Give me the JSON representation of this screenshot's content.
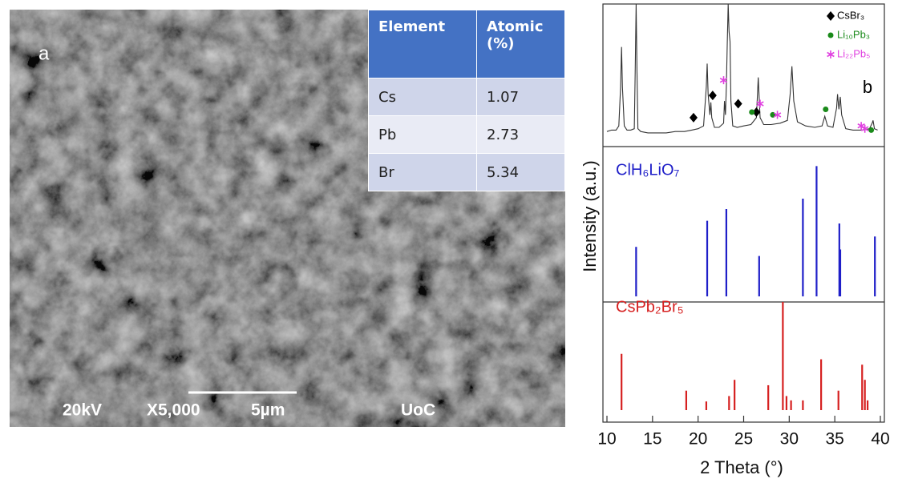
{
  "sem": {
    "label": "a",
    "table": {
      "header": [
        "Element",
        "Atomic (%)"
      ],
      "rows": [
        [
          "Cs",
          1.07
        ],
        [
          "Pb",
          2.73
        ],
        [
          "Br",
          5.34
        ]
      ]
    },
    "footer": [
      "20kV",
      "X5,000",
      "5µm",
      "UoC"
    ]
  },
  "chart_data": [
    {
      "type": "line",
      "annotation": "b",
      "color": "#333333",
      "x": [
        10,
        10.5,
        11,
        11.3,
        11.5,
        11.6,
        11.7,
        11.9,
        12.2,
        12.6,
        13.0,
        13.1,
        13.2,
        13.3,
        13.4,
        13.7,
        14.5,
        15.5,
        16.5,
        17.5,
        18.5,
        19.3,
        20,
        20.6,
        20.9,
        21.0,
        21.1,
        21.3,
        21.4,
        21.5,
        21.8,
        22.3,
        22.8,
        22.9,
        23.0,
        23.1,
        23.2,
        23.3,
        23.4,
        23.5,
        23.6,
        23.8,
        24.3,
        25,
        25.8,
        26.4,
        26.6,
        26.8,
        27.2,
        28,
        29,
        29.8,
        30.1,
        30.3,
        30.5,
        30.9,
        31.8,
        32.8,
        33.6,
        33.9,
        34.2,
        34.8,
        35.2,
        35.3,
        35.45,
        35.6,
        35.75,
        36.2,
        37,
        38,
        38.8,
        39.1,
        39.2,
        39.35,
        39.7
      ],
      "y": [
        8,
        9,
        9,
        12,
        40,
        69,
        40,
        12,
        9,
        9,
        10,
        50,
        100,
        50,
        10,
        8,
        7,
        7,
        7,
        8,
        8,
        9,
        10,
        12,
        40,
        57,
        35,
        20,
        29,
        18,
        11,
        11,
        14,
        30,
        20,
        40,
        70,
        100,
        80,
        73,
        30,
        12,
        11,
        12,
        13,
        18,
        47,
        18,
        13,
        13,
        14,
        16,
        35,
        55,
        30,
        15,
        12,
        11,
        12,
        19,
        12,
        11,
        25,
        35,
        24,
        33,
        20,
        10,
        9,
        9,
        10,
        14,
        16,
        10,
        9
      ],
      "ylim": [
        0,
        100
      ],
      "legend": "upper right",
      "series": [
        {
          "name": "CsBr₃",
          "color": "#000000",
          "marker": "diamond",
          "x": [
            19.5,
            21.6,
            24.4,
            26.4
          ],
          "values": [
            18,
            34,
            28,
            22
          ]
        },
        {
          "name": "Li₁₀Pb₃",
          "color": "#1a8a1a",
          "marker": "circle",
          "x": [
            25.9,
            28.2,
            34.0,
            39.0
          ],
          "values": [
            22,
            20,
            24,
            9
          ]
        },
        {
          "name": "Li₂₂Pb₅",
          "color": "#e040e0",
          "marker": "asterisk",
          "x": [
            22.8,
            26.8,
            28.7,
            37.9,
            38.3
          ],
          "values": [
            45,
            28,
            20,
            12,
            10
          ]
        }
      ]
    },
    {
      "type": "stem",
      "label": "ClH₆LiO₇",
      "color": "#1f1fc8",
      "ylabel": "Intensity (a.u.)",
      "x": [
        13.2,
        21.0,
        23.1,
        26.7,
        31.5,
        33.0,
        35.5,
        35.6,
        39.4
      ],
      "values": [
        38,
        58,
        67,
        31,
        75,
        100,
        56,
        36,
        46
      ],
      "ylim": [
        0,
        115
      ]
    },
    {
      "type": "stem",
      "label": "CsPb₂Br₅",
      "color": "#d62020",
      "xlabel": "2 Theta (°)",
      "x": [
        11.6,
        18.7,
        20.9,
        23.4,
        24.0,
        27.7,
        29.3,
        29.7,
        30.2,
        31.5,
        33.5,
        35.4,
        38.0,
        38.3,
        38.6
      ],
      "values": [
        52,
        18,
        8,
        13,
        28,
        23,
        100,
        13,
        9,
        9,
        47,
        18,
        42,
        28,
        9
      ],
      "ylim": [
        0,
        100
      ],
      "xlim": [
        10,
        40
      ],
      "xticks": [
        10,
        15,
        20,
        25,
        30,
        35,
        40
      ]
    }
  ]
}
